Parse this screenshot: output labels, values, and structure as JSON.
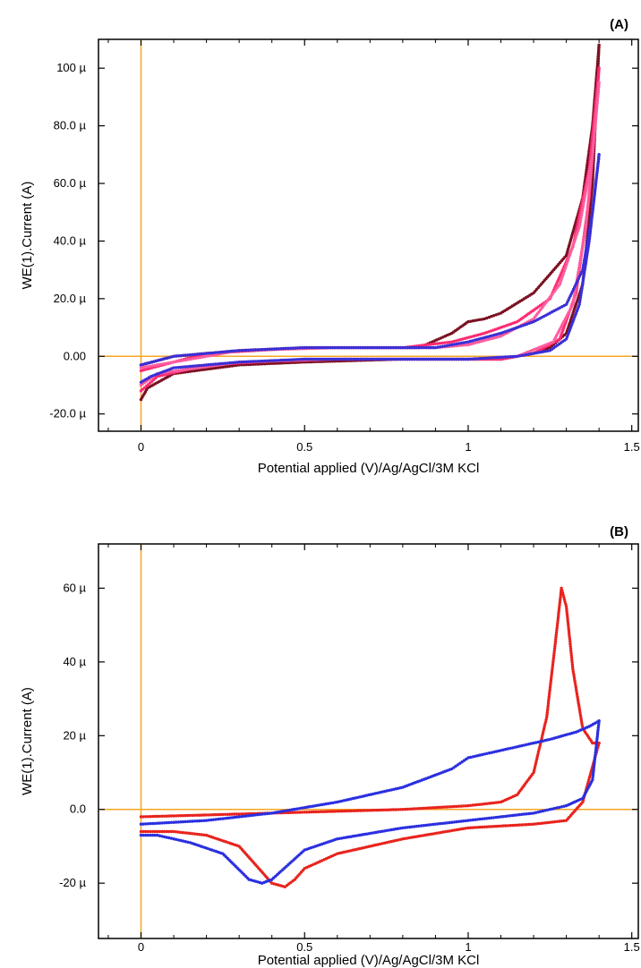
{
  "chart_data": [
    {
      "type": "scatter",
      "panel_label": "(A)",
      "xlabel": "Potential applied (V)/Ag/AgCl/3M KCl",
      "ylabel": "WE(1).Current (A)",
      "xlim": [
        -0.13,
        1.52
      ],
      "ylim": [
        -26,
        110
      ],
      "x_ticks": [
        0,
        0.5,
        1,
        1.5
      ],
      "x_tick_labels": [
        "0",
        "0.5",
        "1",
        "1.5"
      ],
      "y_ticks": [
        -20,
        0,
        20,
        40,
        60,
        80,
        100
      ],
      "y_tick_labels": [
        "-20.0 µ",
        "0.00",
        "20.0 µ",
        "40.0 µ",
        "60.0 µ",
        "80.0 µ",
        "100 µ"
      ],
      "reference_lines_color": "#f5a623",
      "grid": false,
      "series": [
        {
          "color": "#7a1020",
          "x": [
            0,
            0.1,
            0.3,
            0.5,
            0.7,
            0.85,
            0.95,
            1.0,
            1.05,
            1.1,
            1.2,
            1.3,
            1.35,
            1.38,
            1.4
          ],
          "y": [
            -3,
            0,
            2,
            3,
            3,
            3,
            8,
            12,
            13,
            15,
            22,
            35,
            55,
            80,
            108
          ]
        },
        {
          "color": "#7a1020",
          "x": [
            1.4,
            1.38,
            1.35,
            1.3,
            1.25,
            1.2,
            1.1,
            1.0,
            0.8,
            0.5,
            0.3,
            0.1,
            0.02,
            0
          ],
          "y": [
            108,
            60,
            25,
            8,
            3,
            1,
            -1,
            -1,
            -1,
            -2,
            -3,
            -6,
            -11,
            -15
          ]
        },
        {
          "color": "#ff2a72",
          "x": [
            0,
            0.2,
            0.5,
            0.8,
            0.95,
            1.05,
            1.15,
            1.25,
            1.32,
            1.37,
            1.4
          ],
          "y": [
            -5,
            1,
            3,
            3,
            5,
            8,
            12,
            20,
            38,
            65,
            100
          ]
        },
        {
          "color": "#ff2a72",
          "x": [
            1.4,
            1.37,
            1.33,
            1.28,
            1.2,
            1.1,
            0.9,
            0.5,
            0.2,
            0.05,
            0
          ],
          "y": [
            100,
            55,
            22,
            6,
            1,
            -1,
            -1,
            -1,
            -3,
            -7,
            -12
          ]
        },
        {
          "color": "#ff5c9e",
          "x": [
            0,
            0.3,
            0.6,
            0.9,
            1.0,
            1.1,
            1.2,
            1.28,
            1.34,
            1.38,
            1.4
          ],
          "y": [
            -4,
            2,
            3,
            3,
            4,
            7,
            13,
            25,
            45,
            70,
            95
          ]
        },
        {
          "color": "#ff5c9e",
          "x": [
            1.4,
            1.36,
            1.32,
            1.26,
            1.15,
            1.0,
            0.6,
            0.3,
            0.05,
            0
          ],
          "y": [
            95,
            45,
            18,
            5,
            0,
            -1,
            -1,
            -2,
            -6,
            -10
          ]
        },
        {
          "color": "#3a2fd6",
          "x": [
            0,
            0.1,
            0.3,
            0.5,
            0.7,
            0.9,
            1.0,
            1.1,
            1.2,
            1.3,
            1.35,
            1.38,
            1.4
          ],
          "y": [
            -3,
            0,
            2,
            3,
            3,
            3,
            5,
            8,
            12,
            18,
            30,
            50,
            70
          ]
        },
        {
          "color": "#3a2fd6",
          "x": [
            1.4,
            1.37,
            1.34,
            1.3,
            1.25,
            1.15,
            1.0,
            0.8,
            0.5,
            0.3,
            0.1,
            0.03,
            0
          ],
          "y": [
            70,
            40,
            18,
            6,
            2,
            0,
            -1,
            -1,
            -1,
            -2,
            -4,
            -7,
            -9
          ]
        }
      ]
    },
    {
      "type": "scatter",
      "panel_label": "(B)",
      "xlabel": "Potential applied (V)/Ag/AgCl/3M KCl",
      "ylabel": "WE(1).Current (A)",
      "xlim": [
        -0.13,
        1.52
      ],
      "ylim": [
        -35,
        72
      ],
      "x_ticks": [
        0,
        0.5,
        1,
        1.5
      ],
      "x_tick_labels": [
        "0",
        "0.5",
        "1",
        "1.5"
      ],
      "y_ticks": [
        -20,
        0,
        20,
        40,
        60
      ],
      "y_tick_labels": [
        "-20 µ",
        "0.0",
        "20 µ",
        "40 µ",
        "60 µ"
      ],
      "reference_lines_color": "#f5a623",
      "grid": false,
      "series": [
        {
          "color": "#e8231d",
          "x": [
            0,
            0.2,
            0.4,
            0.6,
            0.8,
            1.0,
            1.1,
            1.15,
            1.2,
            1.24,
            1.27,
            1.285,
            1.3,
            1.32,
            1.35,
            1.38,
            1.4
          ],
          "y": [
            -2,
            -1.5,
            -1,
            -0.5,
            0,
            1,
            2,
            4,
            10,
            25,
            48,
            60,
            55,
            38,
            22,
            18,
            18
          ]
        },
        {
          "color": "#e8231d",
          "x": [
            1.4,
            1.35,
            1.3,
            1.2,
            1.0,
            0.8,
            0.6,
            0.5,
            0.47,
            0.44,
            0.4,
            0.35,
            0.3,
            0.2,
            0.1,
            0
          ],
          "y": [
            18,
            2,
            -3,
            -4,
            -5,
            -8,
            -12,
            -16,
            -19,
            -21,
            -20,
            -15,
            -10,
            -7,
            -6,
            -6
          ]
        },
        {
          "color": "#2a2fe0",
          "x": [
            0,
            0.2,
            0.4,
            0.6,
            0.8,
            0.95,
            1.0,
            1.05,
            1.15,
            1.25,
            1.33,
            1.37,
            1.4
          ],
          "y": [
            -4,
            -3,
            -1,
            2,
            6,
            11,
            14,
            15,
            17,
            19,
            21,
            22.5,
            24
          ]
        },
        {
          "color": "#2a2fe0",
          "x": [
            1.4,
            1.38,
            1.35,
            1.3,
            1.2,
            1.0,
            0.8,
            0.6,
            0.5,
            0.45,
            0.4,
            0.37,
            0.33,
            0.25,
            0.15,
            0.05,
            0
          ],
          "y": [
            24,
            8,
            3,
            1,
            -1,
            -3,
            -5,
            -8,
            -11,
            -15,
            -19,
            -20,
            -19,
            -12,
            -9,
            -7,
            -7
          ]
        }
      ]
    }
  ]
}
